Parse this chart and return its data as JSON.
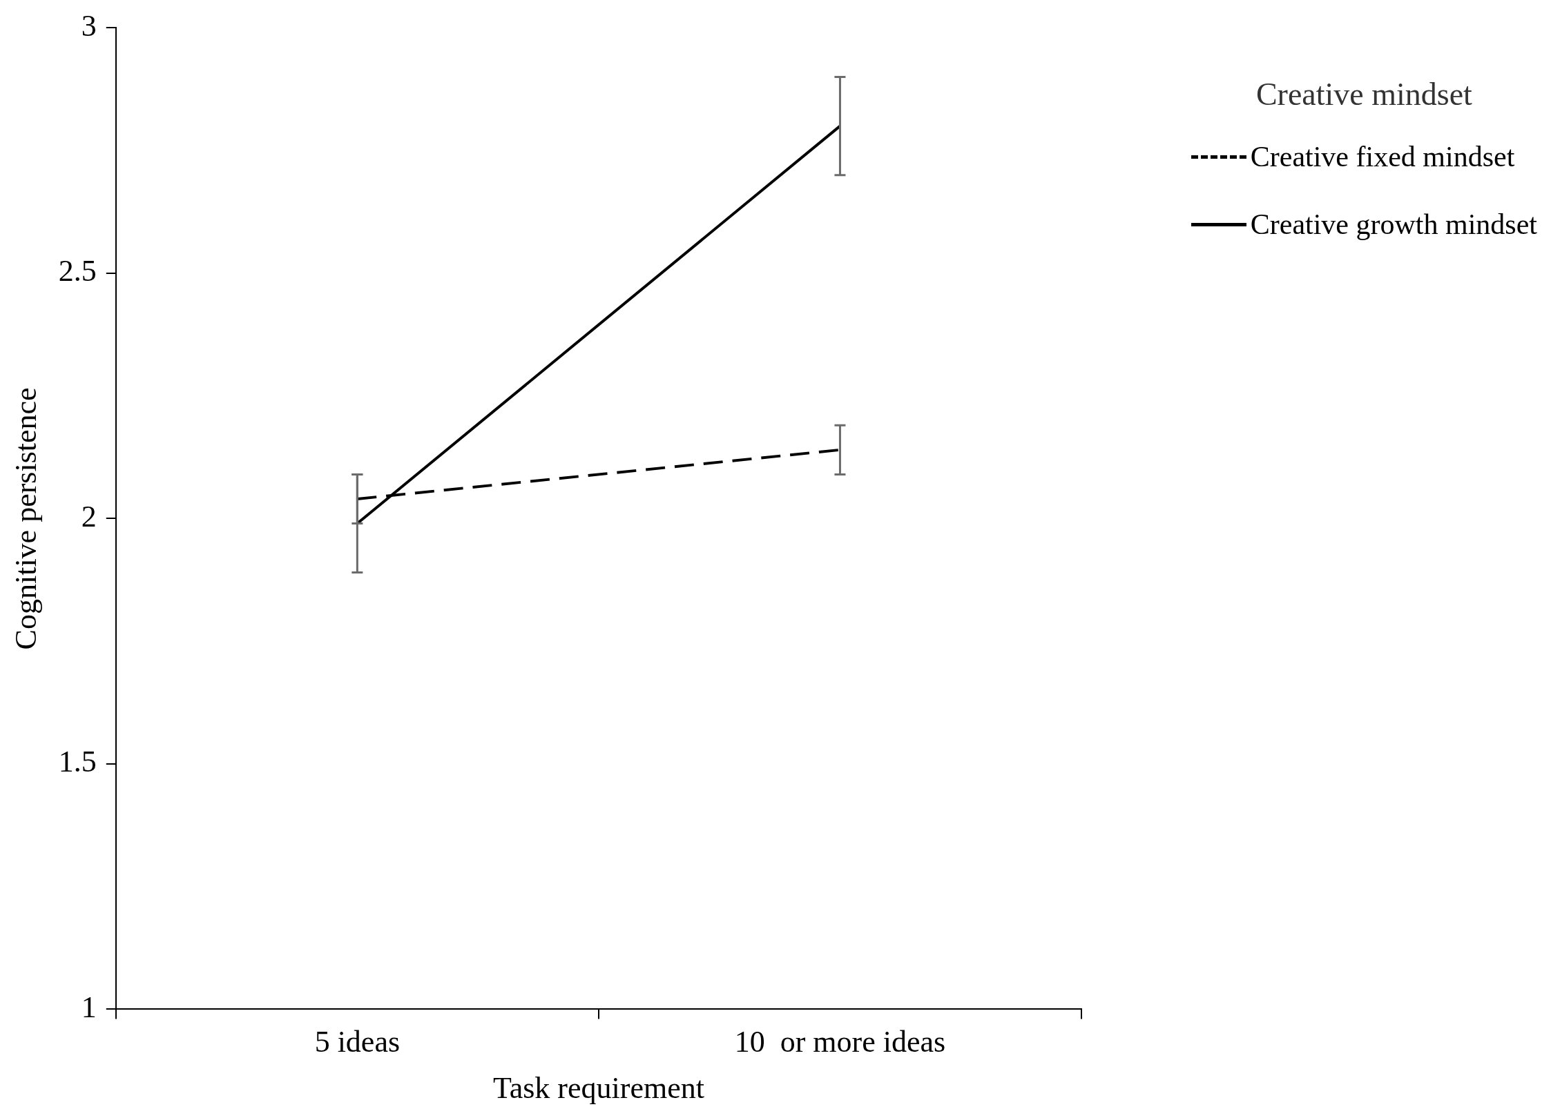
{
  "chart_data": {
    "type": "line",
    "xlabel": "Task requirement",
    "ylabel": "Cognitive persistence",
    "legend_title": "Creative mindset",
    "categories": [
      "5 ideas",
      "10  or more ideas"
    ],
    "series": [
      {
        "name": "Creative fixed mindset",
        "color": "#000000",
        "line_style": "dashed",
        "values": [
          2.04,
          2.14
        ],
        "errors": [
          0.05,
          0.05
        ]
      },
      {
        "name": "Creative growth mindset",
        "color": "#000000",
        "line_style": "solid",
        "values": [
          1.99,
          2.8
        ],
        "errors": [
          0.1,
          0.1
        ]
      }
    ],
    "ylim": [
      1,
      3
    ],
    "yticks": [
      1,
      1.5,
      2,
      2.5,
      3
    ],
    "grid": false,
    "legend": "top right",
    "marker": "none"
  }
}
